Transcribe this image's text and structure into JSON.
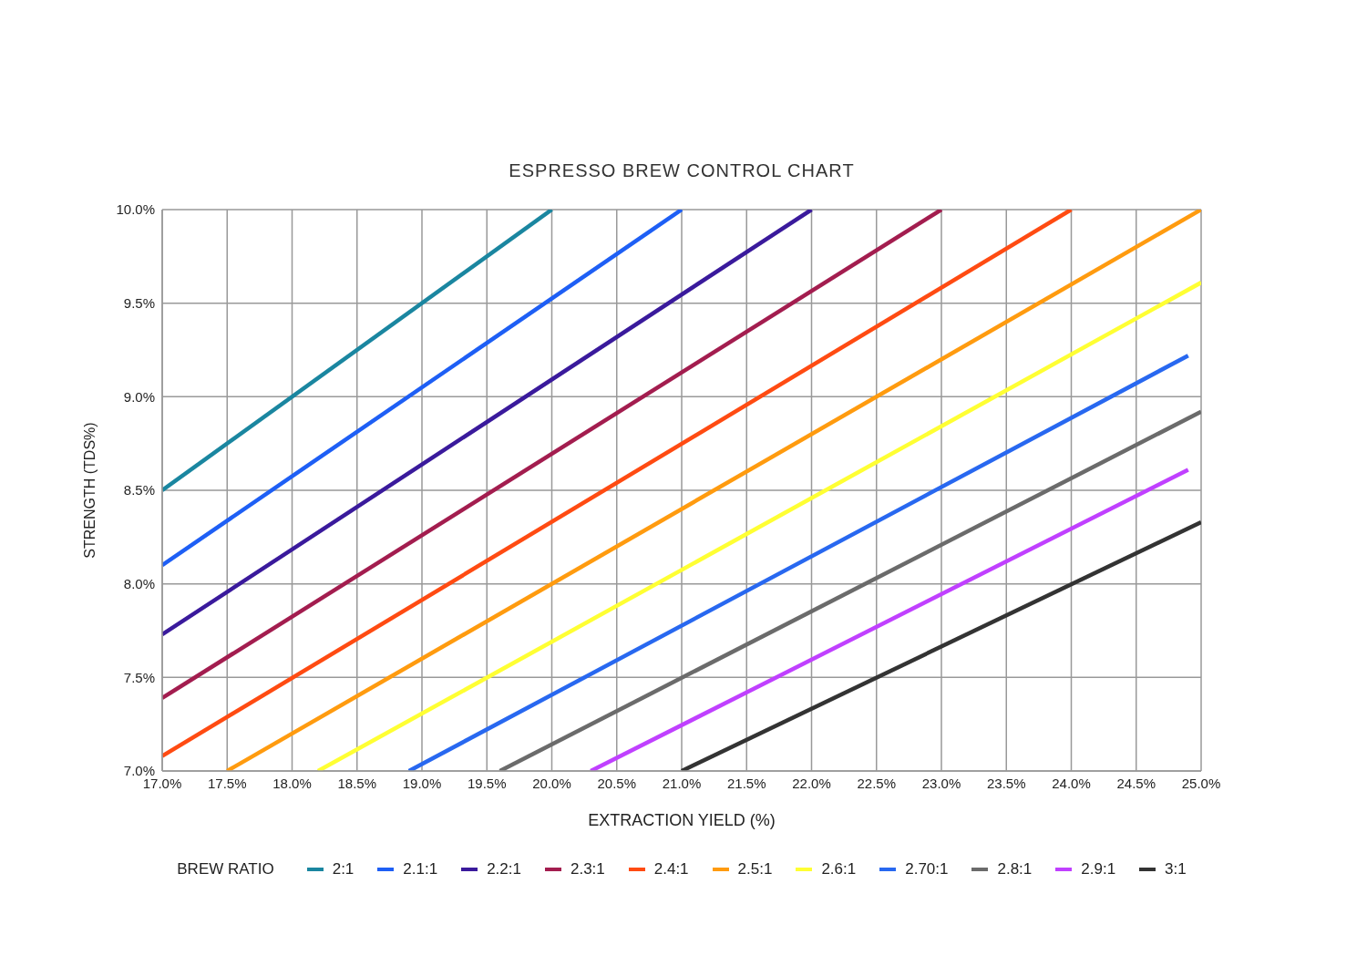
{
  "chart_data": {
    "type": "line",
    "title": "ESPRESSO BREW CONTROL CHART",
    "xlabel": "EXTRACTION YIELD (%)",
    "ylabel": "STRENGTH (TDS%)",
    "legend_title": "BREW RATIO",
    "legend": "bottom",
    "grid": true,
    "marker": "none",
    "line_style": "solid",
    "xlim": [
      17,
      25
    ],
    "ylim": [
      7,
      10
    ],
    "xticks": [
      {
        "value": 17,
        "label": "17.0%"
      },
      {
        "value": 17.5,
        "label": "17.5%"
      },
      {
        "value": 18,
        "label": "18.0%"
      },
      {
        "value": 18.5,
        "label": "18.5%"
      },
      {
        "value": 19,
        "label": "19.0%"
      },
      {
        "value": 19.5,
        "label": "19.5%"
      },
      {
        "value": 20,
        "label": "20.0%"
      },
      {
        "value": 20.5,
        "label": "20.5%"
      },
      {
        "value": 21,
        "label": "21.0%"
      },
      {
        "value": 21.5,
        "label": "21.5%"
      },
      {
        "value": 22,
        "label": "22.0%"
      },
      {
        "value": 22.5,
        "label": "22.5%"
      },
      {
        "value": 23,
        "label": "23.0%"
      },
      {
        "value": 23.5,
        "label": "23.5%"
      },
      {
        "value": 24,
        "label": "24.0%"
      },
      {
        "value": 24.5,
        "label": "24.5%"
      },
      {
        "value": 25,
        "label": "25.0%"
      }
    ],
    "yticks": [
      {
        "value": 7,
        "label": "7.0%"
      },
      {
        "value": 7.5,
        "label": "7.5%"
      },
      {
        "value": 8,
        "label": "8.0%"
      },
      {
        "value": 8.5,
        "label": "8.5%"
      },
      {
        "value": 9,
        "label": "9.0%"
      },
      {
        "value": 9.5,
        "label": "9.5%"
      },
      {
        "value": 10,
        "label": "10.0%"
      }
    ],
    "series": [
      {
        "name": "2:1",
        "color": "#1a86a0",
        "x": [
          17.0,
          20.0
        ],
        "values": [
          8.5,
          10.0
        ]
      },
      {
        "name": "2.1:1",
        "color": "#1e5ff5",
        "x": [
          17.0,
          21.0
        ],
        "values": [
          8.1,
          10.0
        ]
      },
      {
        "name": "2.2:1",
        "color": "#3a1a9c",
        "x": [
          17.0,
          22.0
        ],
        "values": [
          7.73,
          10.0
        ]
      },
      {
        "name": "2.3:1",
        "color": "#a31d4f",
        "x": [
          17.0,
          23.0
        ],
        "values": [
          7.39,
          10.0
        ]
      },
      {
        "name": "2.4:1",
        "color": "#ff4b12",
        "x": [
          17.0,
          24.0
        ],
        "values": [
          7.08,
          10.0
        ]
      },
      {
        "name": "2.5:1",
        "color": "#ff9b0f",
        "x": [
          17.5,
          25.0
        ],
        "values": [
          7.0,
          10.0
        ]
      },
      {
        "name": "2.6:1",
        "color": "#ffff33",
        "x": [
          18.2,
          25.0
        ],
        "values": [
          7.0,
          9.61
        ]
      },
      {
        "name": "2.70:1",
        "color": "#2868f0",
        "x": [
          18.9,
          24.9
        ],
        "values": [
          7.0,
          9.22
        ]
      },
      {
        "name": "2.8:1",
        "color": "#6b6b6b",
        "x": [
          19.6,
          25.0
        ],
        "values": [
          7.0,
          8.92
        ]
      },
      {
        "name": "2.9:1",
        "color": "#c040ff",
        "x": [
          20.3,
          24.9
        ],
        "values": [
          7.0,
          8.61
        ]
      },
      {
        "name": "3:1",
        "color": "#333333",
        "x": [
          21.0,
          25.0
        ],
        "values": [
          7.0,
          8.33
        ]
      }
    ]
  }
}
